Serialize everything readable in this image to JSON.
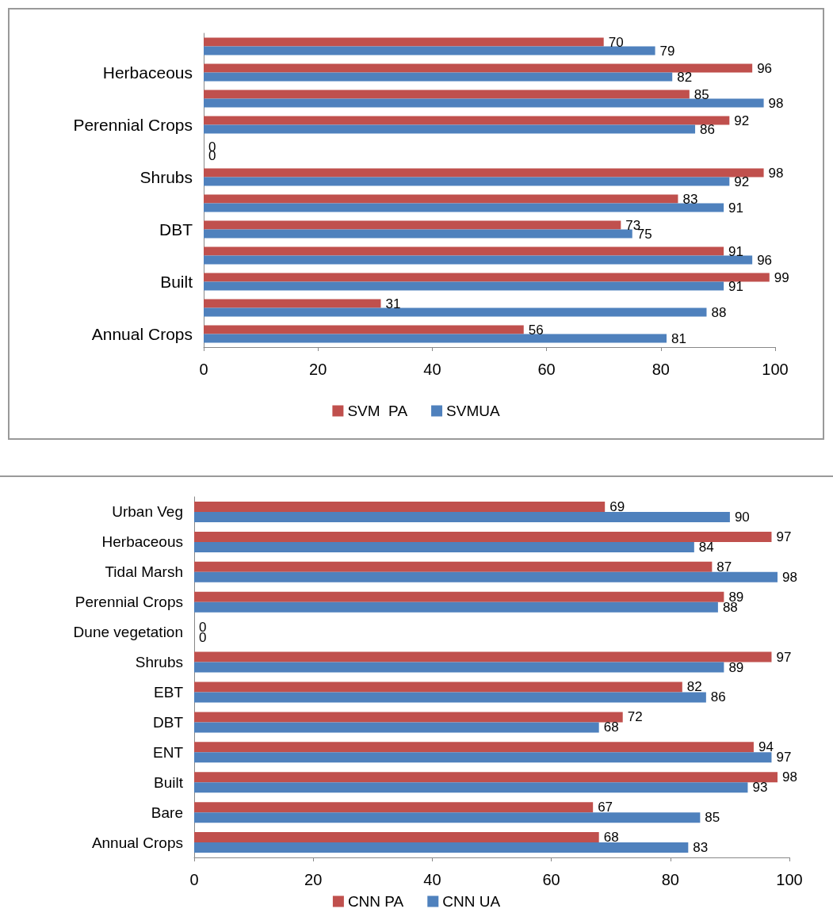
{
  "chart_data": [
    {
      "type": "bar",
      "orientation": "horizontal",
      "categories": [
        null,
        "Herbaceous",
        null,
        "Perennial Crops",
        null,
        "Shrubs",
        null,
        "DBT",
        null,
        "Built",
        null,
        "Annual Crops"
      ],
      "series": [
        {
          "name": "SVM  PA",
          "color": "#c0504d",
          "values": [
            70,
            96,
            85,
            92,
            0,
            98,
            83,
            73,
            91,
            99,
            31,
            56
          ]
        },
        {
          "name": "SVMUA",
          "color": "#4f81bd",
          "values": [
            79,
            82,
            98,
            86,
            0,
            92,
            91,
            75,
            96,
            91,
            88,
            81
          ]
        }
      ],
      "xlim": [
        0,
        100
      ],
      "xticks": [
        0,
        20,
        40,
        60,
        80,
        100
      ],
      "data_labels": true,
      "legend": "bottom",
      "grid": false
    },
    {
      "type": "bar",
      "orientation": "horizontal",
      "categories": [
        "Urban Veg",
        "Herbaceous",
        "Tidal Marsh",
        "Perennial Crops",
        "Dune vegetation",
        "Shrubs",
        "EBT",
        "DBT",
        "ENT",
        "Built",
        "Bare",
        "Annual Crops"
      ],
      "series": [
        {
          "name": "CNN PA",
          "color": "#c0504d",
          "values": [
            69,
            97,
            87,
            89,
            0,
            97,
            82,
            72,
            94,
            98,
            67,
            68
          ]
        },
        {
          "name": "CNN UA",
          "color": "#4f81bd",
          "values": [
            90,
            84,
            98,
            88,
            0,
            89,
            86,
            68,
            97,
            93,
            85,
            83
          ]
        }
      ],
      "xlim": [
        0,
        100
      ],
      "xticks": [
        0,
        20,
        40,
        60,
        80,
        100
      ],
      "data_labels": true,
      "legend": "bottom",
      "grid": false
    }
  ]
}
